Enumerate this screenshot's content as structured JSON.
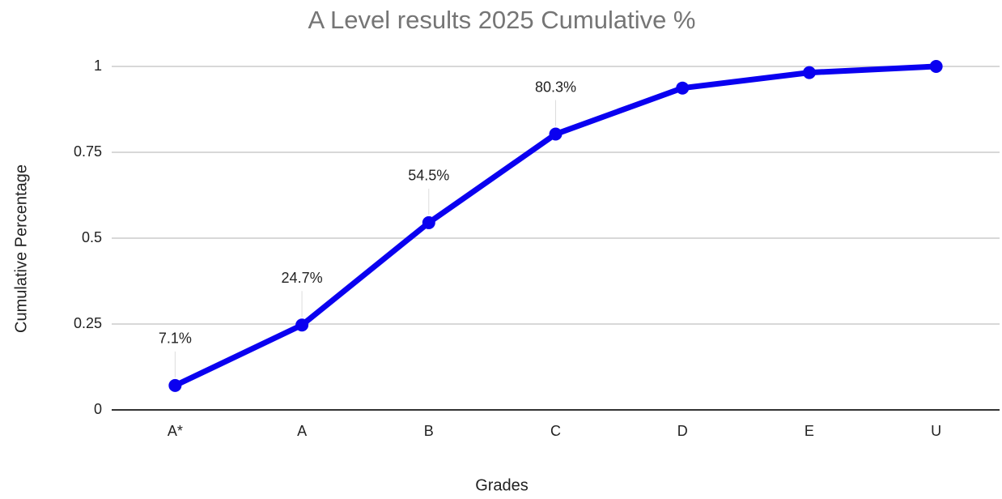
{
  "chart_data": {
    "type": "line",
    "title": "A Level results 2025 Cumulative %",
    "x_label": "Grades",
    "y_label": "Cumulative Percentage",
    "categories": [
      "A*",
      "A",
      "B",
      "C",
      "D",
      "E",
      "U"
    ],
    "series": [
      {
        "name": "Cumulative Percentage",
        "color": "#0a00f0",
        "values": [
          0.071,
          0.247,
          0.545,
          0.803,
          0.937,
          0.982,
          1.0
        ],
        "value_labels": [
          "7.1%",
          "24.7%",
          "54.5%",
          "80.3%",
          null,
          null,
          null
        ]
      }
    ],
    "ylim": [
      0,
      1
    ],
    "yticks": [
      0,
      0.25,
      0.5,
      0.75,
      1
    ],
    "grid": true
  }
}
